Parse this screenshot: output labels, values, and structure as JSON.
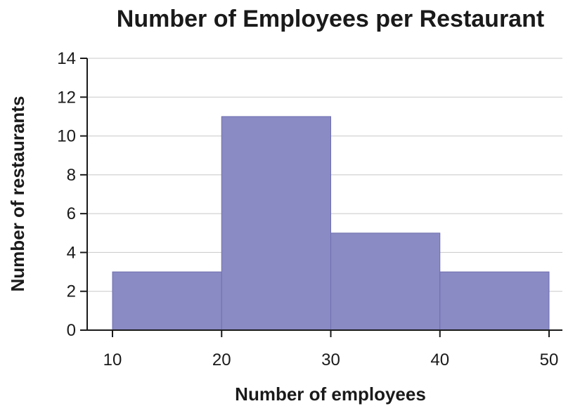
{
  "chart_data": {
    "type": "bar",
    "title": "Number of Employees per Restaurant",
    "xlabel": "Number of employees",
    "ylabel": "Number of restaurants",
    "bins": [
      {
        "from": 10,
        "to": 20,
        "value": 3
      },
      {
        "from": 20,
        "to": 30,
        "value": 11
      },
      {
        "from": 30,
        "to": 40,
        "value": 5
      },
      {
        "from": 40,
        "to": 50,
        "value": 3
      }
    ],
    "x_ticks": [
      "10",
      "20",
      "30",
      "40",
      "50"
    ],
    "y_ticks": [
      "0",
      "2",
      "4",
      "6",
      "8",
      "10",
      "12",
      "14"
    ],
    "xlim": [
      10,
      50
    ],
    "ylim": [
      0,
      14
    ],
    "grid": "horizontal",
    "legend": "none",
    "bar_color": "#8a8ac4"
  }
}
